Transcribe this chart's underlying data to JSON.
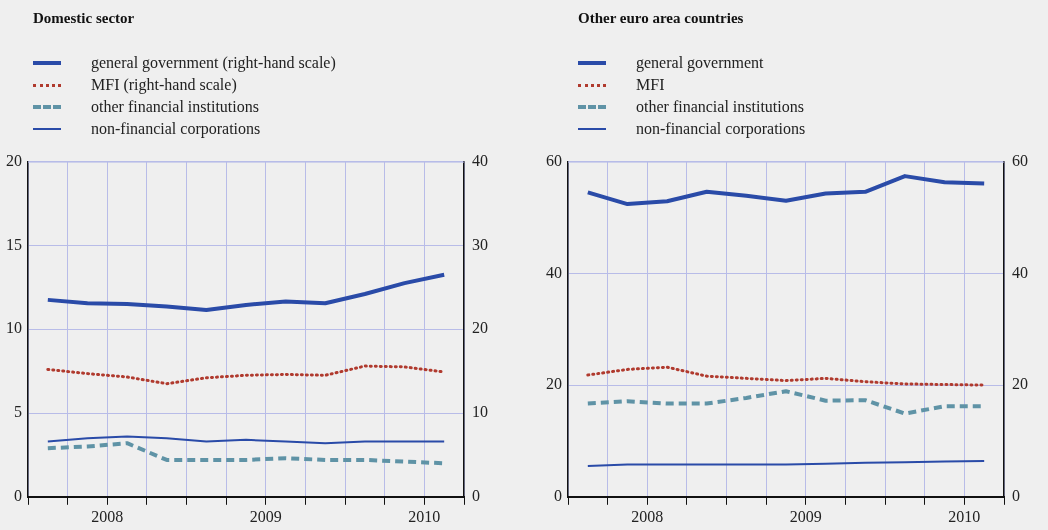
{
  "chart_data": [
    {
      "type": "line",
      "title": "Domestic sector",
      "legend": "top left",
      "grid": true,
      "x": [
        2008.125,
        2008.375,
        2008.625,
        2008.875,
        2009.125,
        2009.375,
        2009.625,
        2009.875,
        2010.125,
        2010.375,
        2010.625
      ],
      "xlim": [
        2008,
        2010.75
      ],
      "xticks": [
        {
          "value": 2008,
          "label": null
        },
        {
          "value": 2008.25,
          "label": null
        },
        {
          "value": 2008.5,
          "label": "2008"
        },
        {
          "value": 2008.75,
          "label": null
        },
        {
          "value": 2009,
          "label": null
        },
        {
          "value": 2009.25,
          "label": null
        },
        {
          "value": 2009.5,
          "label": "2009"
        },
        {
          "value": 2009.75,
          "label": null
        },
        {
          "value": 2010,
          "label": null
        },
        {
          "value": 2010.25,
          "label": null
        },
        {
          "value": 2010.5,
          "label": "2010"
        },
        {
          "value": 2010.75,
          "label": null
        }
      ],
      "ylim": [
        0,
        20
      ],
      "yticks": [
        0,
        5,
        10,
        15,
        20
      ],
      "y2lim": [
        0,
        40
      ],
      "y2ticks": [
        0,
        10,
        20,
        30,
        40
      ],
      "series": [
        {
          "name": "general government (right-hand scale)",
          "color": "#2a4ba8",
          "axis": "y2",
          "line_style": "solid",
          "values": [
            23.5,
            23.1,
            23.0,
            22.7,
            22.3,
            22.9,
            23.3,
            23.1,
            24.2,
            25.5,
            26.5
          ]
        },
        {
          "name": "MFI (right-hand scale)",
          "color": "#b03a2e",
          "axis": "y2",
          "line_style": "dotted",
          "values": [
            15.2,
            14.7,
            14.3,
            13.5,
            14.2,
            14.5,
            14.6,
            14.5,
            15.6,
            15.5,
            14.9
          ]
        },
        {
          "name": "other financial institutions",
          "color": "#5f93a6",
          "axis": "y",
          "line_style": "dashed",
          "values": [
            2.9,
            3.0,
            3.2,
            2.2,
            2.2,
            2.2,
            2.3,
            2.2,
            2.2,
            2.1,
            2.0
          ]
        },
        {
          "name": "non-financial corporations",
          "color": "#2a4ba8",
          "axis": "y",
          "line_style": "solid",
          "values": [
            3.3,
            3.5,
            3.6,
            3.5,
            3.3,
            3.4,
            3.3,
            3.2,
            3.3,
            3.3,
            3.3
          ]
        }
      ]
    },
    {
      "type": "line",
      "title": "Other euro area countries",
      "legend": "top left",
      "grid": true,
      "x": [
        2008.125,
        2008.375,
        2008.625,
        2008.875,
        2009.125,
        2009.375,
        2009.625,
        2009.875,
        2010.125,
        2010.375,
        2010.625
      ],
      "xlim": [
        2008,
        2010.75
      ],
      "xticks": [
        {
          "value": 2008,
          "label": null
        },
        {
          "value": 2008.25,
          "label": null
        },
        {
          "value": 2008.5,
          "label": "2008"
        },
        {
          "value": 2008.75,
          "label": null
        },
        {
          "value": 2009,
          "label": null
        },
        {
          "value": 2009.25,
          "label": null
        },
        {
          "value": 2009.5,
          "label": "2009"
        },
        {
          "value": 2009.75,
          "label": null
        },
        {
          "value": 2010,
          "label": null
        },
        {
          "value": 2010.25,
          "label": null
        },
        {
          "value": 2010.5,
          "label": "2010"
        },
        {
          "value": 2010.75,
          "label": null
        }
      ],
      "ylim": [
        0,
        60
      ],
      "yticks": [
        0,
        20,
        40,
        60
      ],
      "y2lim": [
        0,
        60
      ],
      "y2ticks": [
        0,
        20,
        40,
        60
      ],
      "series": [
        {
          "name": "general government",
          "color": "#2a4ba8",
          "axis": "y",
          "line_style": "solid",
          "values": [
            54.5,
            52.4,
            52.9,
            54.6,
            53.9,
            53.0,
            54.3,
            54.6,
            57.4,
            56.3,
            56.1
          ]
        },
        {
          "name": "MFI",
          "color": "#b03a2e",
          "axis": "y",
          "line_style": "dotted",
          "values": [
            21.8,
            22.8,
            23.2,
            21.6,
            21.2,
            20.8,
            21.2,
            20.6,
            20.2,
            20.1,
            20.0
          ]
        },
        {
          "name": "other financial institutions",
          "color": "#5f93a6",
          "axis": "y",
          "line_style": "dashed",
          "values": [
            16.7,
            17.1,
            16.7,
            16.7,
            17.7,
            18.9,
            17.2,
            17.3,
            14.9,
            16.2,
            16.2
          ]
        },
        {
          "name": "non-financial corporations",
          "color": "#2a4ba8",
          "axis": "y",
          "line_style": "solid",
          "values": [
            5.5,
            5.8,
            5.8,
            5.8,
            5.8,
            5.8,
            5.9,
            6.1,
            6.2,
            6.3,
            6.4
          ]
        }
      ]
    }
  ]
}
